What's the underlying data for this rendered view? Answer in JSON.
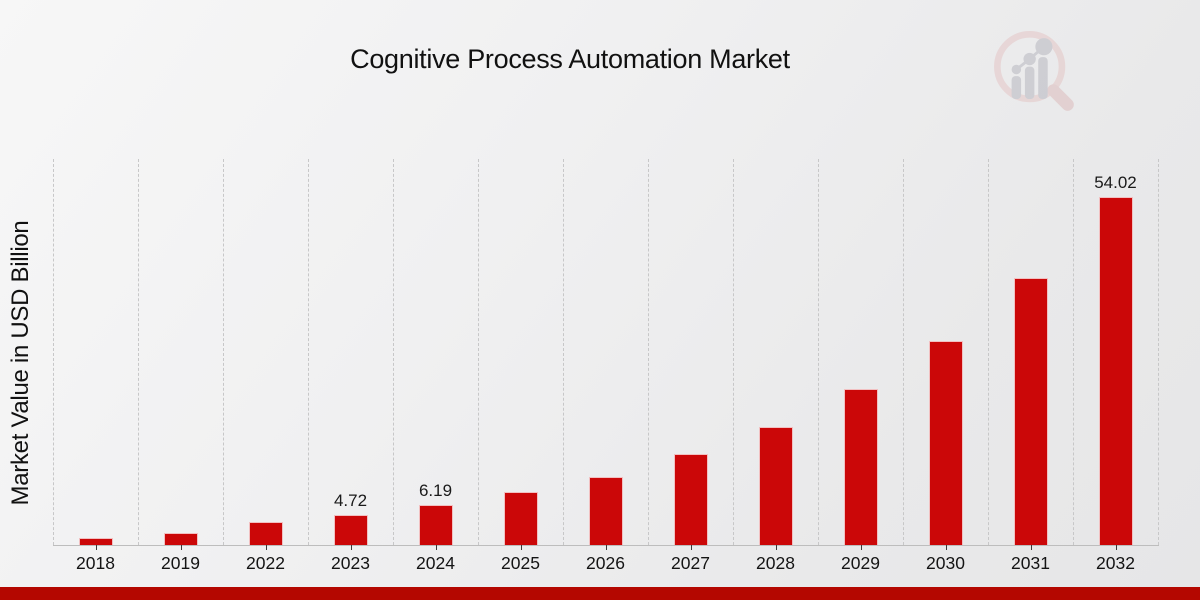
{
  "page": {
    "title": "Cognitive Process Automation Market"
  },
  "chart_data": {
    "type": "bar",
    "title": "Cognitive Process Automation Market",
    "ylabel": "Market Value in USD Billion",
    "xlabel": "",
    "categories": [
      "2018",
      "2019",
      "2022",
      "2023",
      "2024",
      "2025",
      "2026",
      "2027",
      "2028",
      "2029",
      "2030",
      "2031",
      "2032"
    ],
    "values": [
      1.1,
      1.9,
      3.6,
      4.72,
      6.19,
      8.2,
      10.6,
      14.1,
      18.3,
      24.2,
      31.7,
      41.5,
      54.02
    ],
    "data_labels": [
      "",
      "",
      "",
      "4.72",
      "6.19",
      "",
      "",
      "",
      "",
      "",
      "",
      "",
      "54.02"
    ],
    "ylim": [
      0,
      60
    ],
    "grid": "vertical-dashed",
    "legend": "none",
    "bar_color": "#cb0708",
    "gridline_color": "#c7c7c8",
    "axis_line_color": "#bdbdbd",
    "text_color": "#141414"
  },
  "watermark": {
    "icon": "magnifier-bar-chart-logo",
    "ring_color": "#e4c6c6",
    "bars_color": "#b7b7c0",
    "handle_color": "#ddbcbc"
  },
  "footer": {
    "strip_color": "#b40700"
  }
}
